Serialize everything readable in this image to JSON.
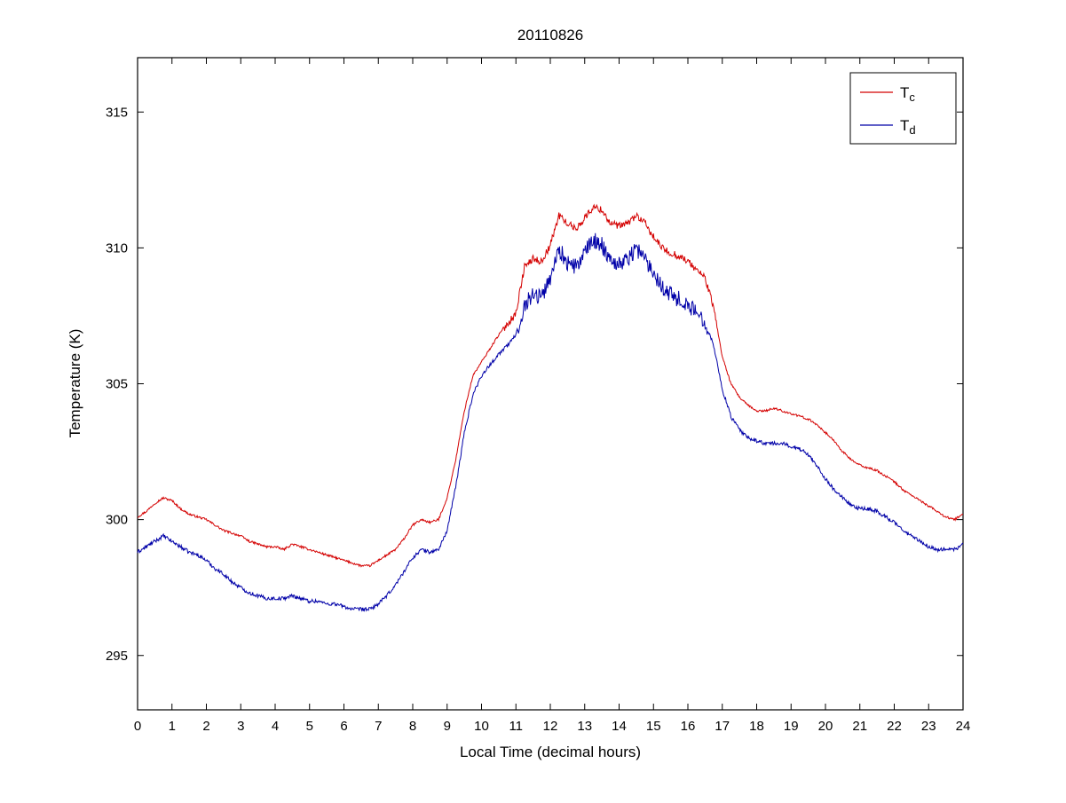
{
  "figure": {
    "background": "#ffffff",
    "axes_color": "#000000"
  },
  "chart_data": {
    "type": "line",
    "title": "20110826",
    "xlabel": "Local Time (decimal hours)",
    "ylabel": "Temperature (K)",
    "xlim": [
      0,
      24
    ],
    "ylim": [
      293,
      317
    ],
    "xticks": [
      0,
      1,
      2,
      3,
      4,
      5,
      6,
      7,
      8,
      9,
      10,
      11,
      12,
      13,
      14,
      15,
      16,
      17,
      18,
      19,
      20,
      21,
      22,
      23,
      24
    ],
    "yticks": [
      295,
      300,
      305,
      310,
      315
    ],
    "grid": false,
    "legend": {
      "position": "top-right",
      "entries": [
        {
          "base": "T",
          "sub": "c"
        },
        {
          "base": "T",
          "sub": "d"
        }
      ]
    },
    "x": [
      0,
      0.25,
      0.5,
      0.75,
      1,
      1.25,
      1.5,
      1.75,
      2,
      2.25,
      2.5,
      2.75,
      3,
      3.25,
      3.5,
      3.75,
      4,
      4.25,
      4.5,
      4.75,
      5,
      5.25,
      5.5,
      5.75,
      6,
      6.25,
      6.5,
      6.75,
      7,
      7.25,
      7.5,
      7.75,
      8,
      8.25,
      8.5,
      8.75,
      9,
      9.25,
      9.5,
      9.75,
      10,
      10.25,
      10.5,
      10.75,
      11,
      11.25,
      11.5,
      11.75,
      12,
      12.25,
      12.5,
      12.75,
      13,
      13.25,
      13.5,
      13.75,
      14,
      14.25,
      14.5,
      14.75,
      15,
      15.25,
      15.5,
      15.75,
      16,
      16.25,
      16.5,
      16.75,
      17,
      17.25,
      17.5,
      17.75,
      18,
      18.25,
      18.5,
      18.75,
      19,
      19.25,
      19.5,
      19.75,
      20,
      20.25,
      20.5,
      20.75,
      21,
      21.25,
      21.5,
      21.75,
      22,
      22.25,
      22.5,
      22.75,
      23,
      23.25,
      23.5,
      23.75,
      24
    ],
    "series": [
      {
        "name": "T_c",
        "color": "#d40000",
        "noise": {
          "base": 0.04,
          "peak": 0.09
        },
        "values": [
          300.1,
          300.3,
          300.6,
          300.8,
          300.7,
          300.4,
          300.2,
          300.1,
          300.0,
          299.8,
          299.6,
          299.5,
          299.4,
          299.2,
          299.1,
          299.0,
          299.0,
          298.9,
          299.1,
          299.0,
          298.9,
          298.8,
          298.7,
          298.6,
          298.5,
          298.4,
          298.3,
          298.3,
          298.5,
          298.7,
          298.9,
          299.3,
          299.8,
          300.0,
          299.9,
          300.0,
          300.8,
          302.2,
          304.0,
          305.3,
          305.8,
          306.3,
          306.8,
          307.2,
          307.6,
          309.3,
          309.6,
          309.5,
          310.1,
          311.2,
          310.9,
          310.7,
          311.1,
          311.5,
          311.4,
          310.9,
          310.8,
          310.9,
          311.2,
          310.9,
          310.4,
          310.0,
          309.8,
          309.7,
          309.5,
          309.2,
          308.9,
          307.8,
          306.0,
          305.0,
          304.5,
          304.2,
          304.0,
          304.0,
          304.1,
          304.0,
          303.9,
          303.8,
          303.7,
          303.5,
          303.2,
          302.9,
          302.5,
          302.2,
          302.0,
          301.9,
          301.8,
          301.6,
          301.4,
          301.1,
          300.9,
          300.7,
          300.5,
          300.3,
          300.1,
          300.0,
          300.2
        ]
      },
      {
        "name": "T_d",
        "color": "#0000a8",
        "noise": {
          "base": 0.07,
          "peak": 0.24
        },
        "values": [
          298.8,
          299.0,
          299.2,
          299.4,
          299.2,
          299.0,
          298.8,
          298.7,
          298.5,
          298.2,
          298.0,
          297.7,
          297.5,
          297.3,
          297.2,
          297.1,
          297.1,
          297.1,
          297.2,
          297.1,
          297.0,
          297.0,
          296.9,
          296.9,
          296.8,
          296.7,
          296.7,
          296.7,
          296.9,
          297.2,
          297.6,
          298.1,
          298.6,
          298.9,
          298.8,
          298.9,
          299.6,
          301.2,
          303.2,
          304.6,
          305.3,
          305.7,
          306.1,
          306.4,
          306.8,
          307.9,
          308.3,
          308.2,
          308.9,
          310.0,
          309.4,
          309.3,
          309.8,
          310.3,
          310.1,
          309.6,
          309.4,
          309.6,
          310.0,
          309.6,
          309.1,
          308.6,
          308.3,
          308.1,
          307.9,
          307.6,
          307.3,
          306.4,
          304.8,
          303.8,
          303.3,
          303.0,
          302.9,
          302.8,
          302.8,
          302.8,
          302.7,
          302.6,
          302.4,
          302.0,
          301.5,
          301.1,
          300.8,
          300.5,
          300.4,
          300.4,
          300.3,
          300.1,
          299.9,
          299.6,
          299.4,
          299.2,
          299.0,
          298.9,
          298.9,
          298.9,
          299.1
        ]
      }
    ]
  }
}
